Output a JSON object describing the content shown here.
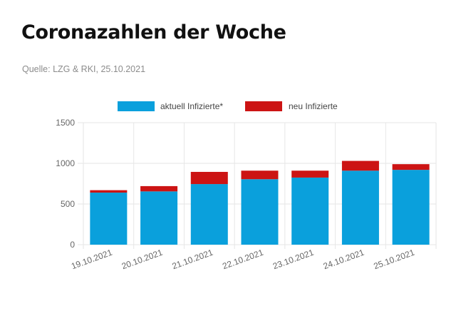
{
  "header": {
    "title": "Coronazahlen der Woche",
    "source": "Quelle: LZG & RKI, 25.10.2021"
  },
  "colors": {
    "aktuell": "#0aa0dc",
    "neu": "#cc1414",
    "grid": "#e6e6e6",
    "axis": "#666666"
  },
  "chart_data": {
    "type": "bar",
    "stacked": true,
    "title": "",
    "xlabel": "",
    "ylabel": "",
    "categories": [
      "19.10.2021",
      "20.10.2021",
      "21.10.2021",
      "22.10.2021",
      "23.10.2021",
      "24.10.2021",
      "25.10.2021"
    ],
    "series": [
      {
        "name": "aktuell Infizierte*",
        "color": "#0aa0dc",
        "values": [
          640,
          655,
          745,
          805,
          825,
          910,
          920
        ]
      },
      {
        "name": "neu Infizierte",
        "color": "#cc1414",
        "values": [
          30,
          65,
          150,
          105,
          85,
          120,
          70
        ]
      }
    ],
    "ylim": [
      0,
      1500
    ],
    "yticks": [
      "0",
      "500",
      "1000",
      "1500"
    ],
    "grid": true,
    "legend": "top-center"
  }
}
